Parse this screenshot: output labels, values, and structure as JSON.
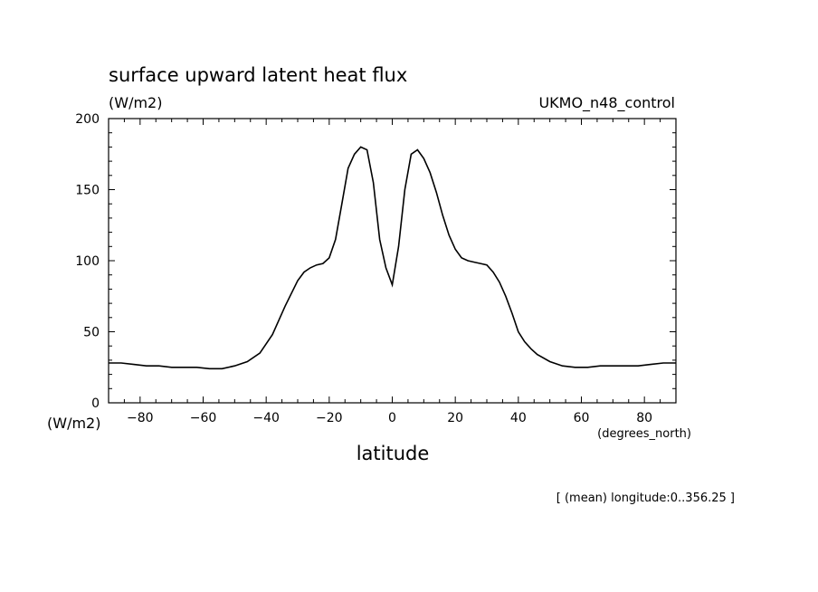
{
  "chart_data": {
    "type": "line",
    "title": "surface upward latent heat flux",
    "subtitle": "(W/m2)",
    "model_label": "UKMO_n48_control",
    "ylabel": "(W/m2)",
    "xlabel": "latitude",
    "x_units": "(degrees_north)",
    "footnote": "[ (mean) longitude:0..356.25 ]",
    "xlim": [
      -90,
      90
    ],
    "ylim": [
      0,
      200
    ],
    "x_ticks": [
      -80,
      -60,
      -40,
      -20,
      0,
      20,
      40,
      60,
      80
    ],
    "x_tick_labels": [
      "−80",
      "−60",
      "−40",
      "−20",
      "0",
      "20",
      "40",
      "60",
      "80"
    ],
    "y_ticks": [
      0,
      50,
      100,
      150,
      200
    ],
    "y_tick_labels": [
      "0",
      "50",
      "100",
      "150",
      "200"
    ],
    "grid": false,
    "line_color": "#000000",
    "series": [
      {
        "x": [
          -90,
          -86,
          -82,
          -78,
          -74,
          -70,
          -66,
          -62,
          -58,
          -54,
          -50,
          -46,
          -42,
          -38,
          -34,
          -30,
          -28,
          -26,
          -24,
          -22,
          -20,
          -18,
          -16,
          -14,
          -12,
          -10,
          -8,
          -6,
          -4,
          -2,
          0,
          2,
          4,
          6,
          8,
          10,
          12,
          14,
          16,
          18,
          20,
          22,
          24,
          26,
          28,
          30,
          32,
          34,
          36,
          38,
          40,
          42,
          44,
          46,
          50,
          54,
          58,
          62,
          66,
          70,
          74,
          78,
          82,
          86,
          90
        ],
        "y": [
          28,
          28,
          27,
          26,
          26,
          25,
          25,
          25,
          24,
          24,
          26,
          29,
          35,
          48,
          68,
          86,
          92,
          95,
          97,
          98,
          102,
          115,
          140,
          165,
          175,
          180,
          178,
          155,
          115,
          95,
          83,
          110,
          150,
          175,
          178,
          172,
          162,
          148,
          132,
          118,
          108,
          102,
          100,
          99,
          98,
          97,
          92,
          85,
          75,
          63,
          50,
          43,
          38,
          34,
          29,
          26,
          25,
          25,
          26,
          26,
          26,
          26,
          27,
          28,
          28
        ]
      }
    ]
  }
}
